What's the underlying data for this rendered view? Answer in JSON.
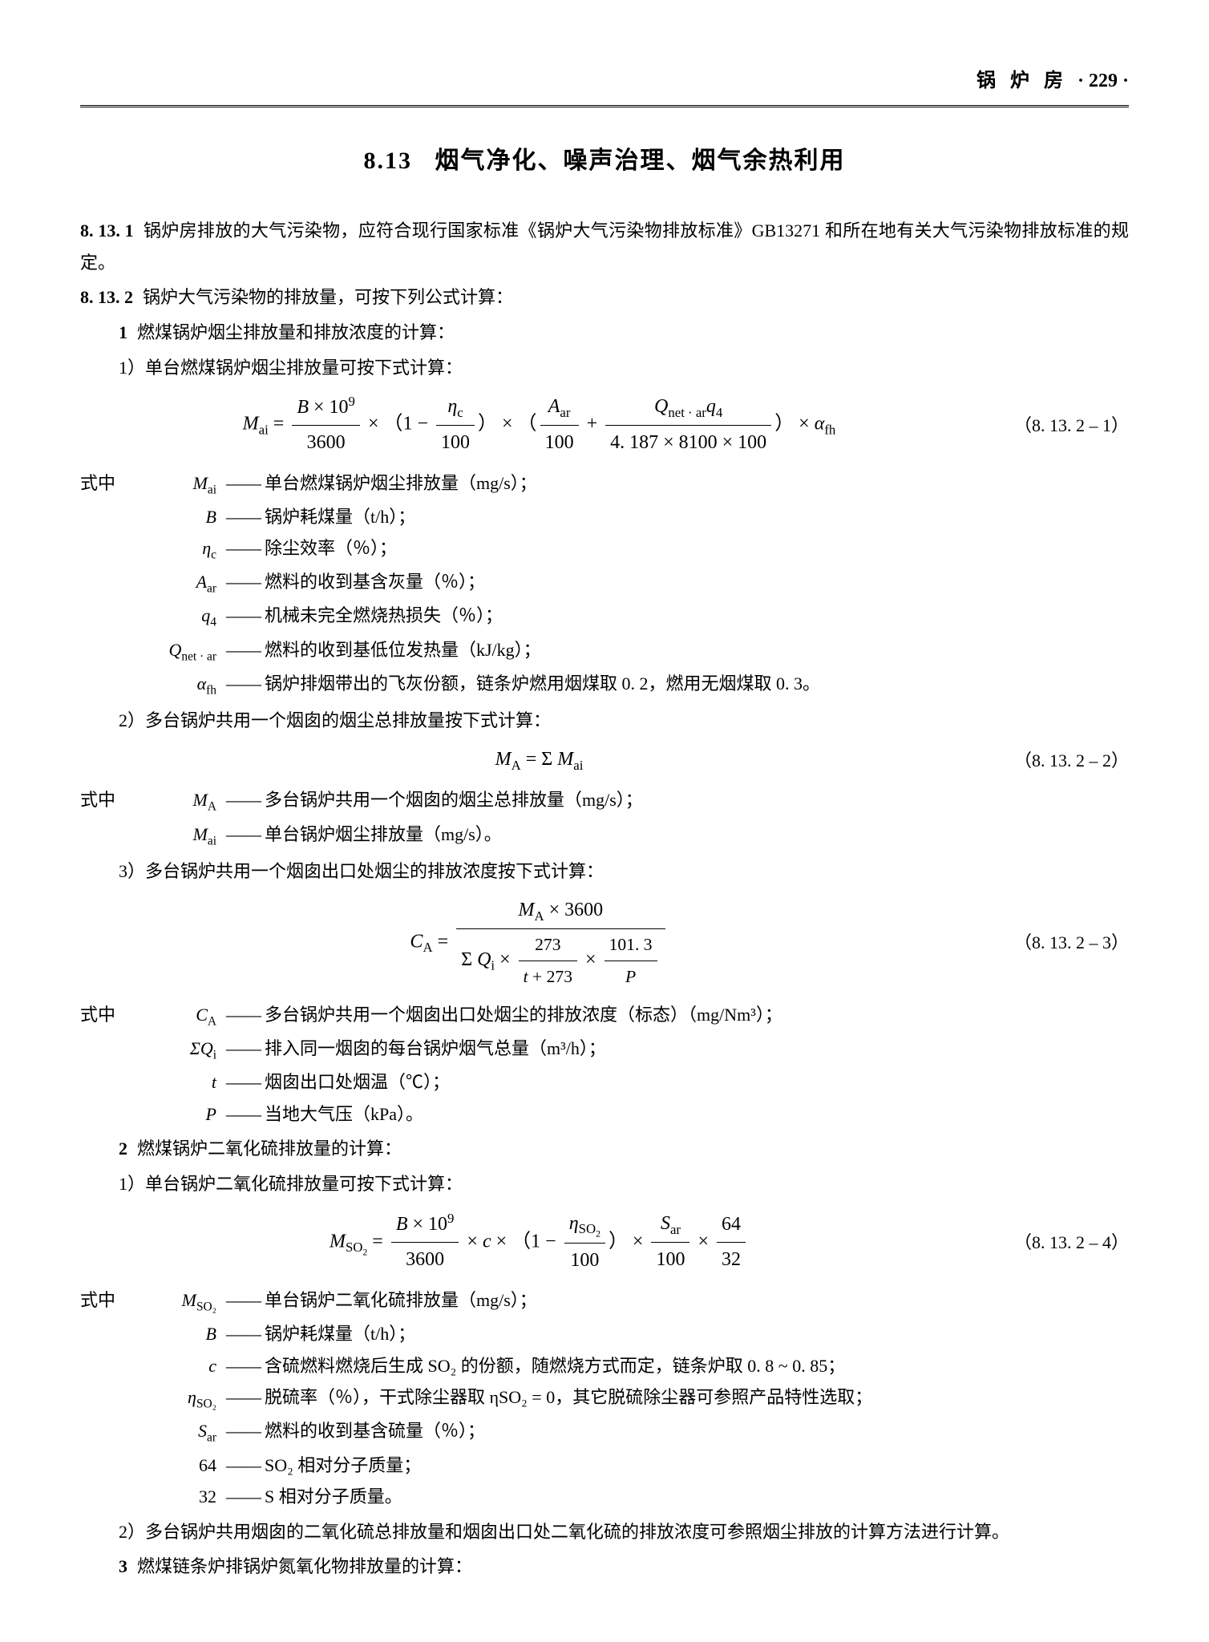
{
  "header": {
    "chapter": "锅 炉 房",
    "page": "· 229 ·"
  },
  "section": {
    "num": "8.13",
    "title": "烟气净化、噪声治理、烟气余热利用"
  },
  "p1": {
    "num": "8. 13. 1",
    "text": "锅炉房排放的大气污染物，应符合现行国家标准《锅炉大气污染物排放标准》GB13271 和所在地有关大气污染物排放标准的规定。"
  },
  "p2": {
    "num": "8. 13. 2",
    "text": "锅炉大气污染物的排放量，可按下列公式计算："
  },
  "s1": {
    "num": "1",
    "text": "燃煤锅炉烟尘排放量和排放浓度的计算："
  },
  "s1_1": {
    "num": "1）",
    "text": "单台燃煤锅炉烟尘排放量可按下式计算："
  },
  "f1": {
    "num": "（8. 13. 2 – 1）"
  },
  "where": "式中",
  "w1": {
    "sym": "M",
    "sub": "ai",
    "desc": "单台燃煤锅炉烟尘排放量（mg/s）；"
  },
  "w2": {
    "sym": "B",
    "desc": "锅炉耗煤量（t/h）；"
  },
  "w3": {
    "sym": "η",
    "sub": "c",
    "desc": "除尘效率（％）；"
  },
  "w4": {
    "sym": "A",
    "sub": "ar",
    "desc": "燃料的收到基含灰量（％）；"
  },
  "w5": {
    "sym": "q",
    "sub": "4",
    "desc": "机械未完全燃烧热损失（％）；"
  },
  "w6": {
    "sym": "Q",
    "sub": "net · ar",
    "desc": "燃料的收到基低位发热量（kJ/kg）；"
  },
  "w7": {
    "sym": "α",
    "sub": "fh",
    "desc": "锅炉排烟带出的飞灰份额，链条炉燃用烟煤取 0. 2，燃用无烟煤取 0. 3。"
  },
  "s1_2": {
    "num": "2）",
    "text": "多台锅炉共用一个烟囱的烟尘总排放量按下式计算："
  },
  "f2": {
    "eq": "MA = Σ Mai",
    "num": "（8. 13. 2 – 2）"
  },
  "w8": {
    "sym": "M",
    "sub": "A",
    "desc": "多台锅炉共用一个烟囱的烟尘总排放量（mg/s）；"
  },
  "w9": {
    "sym": "M",
    "sub": "ai",
    "desc": "单台锅炉烟尘排放量（mg/s）。"
  },
  "s1_3": {
    "num": "3）",
    "text": "多台锅炉共用一个烟囱出口处烟尘的排放浓度按下式计算："
  },
  "f3": {
    "num": "（8. 13. 2 – 3）"
  },
  "w10": {
    "sym": "C",
    "sub": "A",
    "desc": "多台锅炉共用一个烟囱出口处烟尘的排放浓度（标态）（mg/Nm³）；"
  },
  "w11": {
    "sym": "ΣQ",
    "sub": "i",
    "desc": "排入同一烟囱的每台锅炉烟气总量（m³/h）；"
  },
  "w12": {
    "sym": "t",
    "desc": "烟囱出口处烟温（℃）；"
  },
  "w13": {
    "sym": "P",
    "desc": "当地大气压（kPa）。"
  },
  "s2": {
    "num": "2",
    "text": "燃煤锅炉二氧化硫排放量的计算："
  },
  "s2_1": {
    "num": "1）",
    "text": "单台锅炉二氧化硫排放量可按下式计算："
  },
  "f4": {
    "num": "（8. 13. 2 – 4）"
  },
  "w14": {
    "sym": "M",
    "sub": "SO₂",
    "desc": "单台锅炉二氧化硫排放量（mg/s）；"
  },
  "w15": {
    "sym": "B",
    "desc": "锅炉耗煤量（t/h）；"
  },
  "w16": {
    "sym": "c",
    "desc": "含硫燃料燃烧后生成 SO₂ 的份额，随燃烧方式而定，链条炉取 0. 8 ~ 0. 85；"
  },
  "w17": {
    "sym": "η",
    "sub": "SO₂",
    "desc": "脱硫率（％），干式除尘器取 ηSO₂ = 0，其它脱硫除尘器可参照产品特性选取；"
  },
  "w18": {
    "sym": "S",
    "sub": "ar",
    "desc": "燃料的收到基含硫量（％）；"
  },
  "w19": {
    "sym": "64",
    "desc": "SO₂ 相对分子质量；"
  },
  "w20": {
    "sym": "32",
    "desc": "S 相对分子质量。"
  },
  "s2_2": {
    "num": "2）",
    "text": "多台锅炉共用烟囱的二氧化硫总排放量和烟囱出口处二氧化硫的排放浓度可参照烟尘排放的计算方法进行计算。"
  },
  "s3": {
    "num": "3",
    "text": "燃煤链条炉排锅炉氮氧化物排放量的计算："
  }
}
